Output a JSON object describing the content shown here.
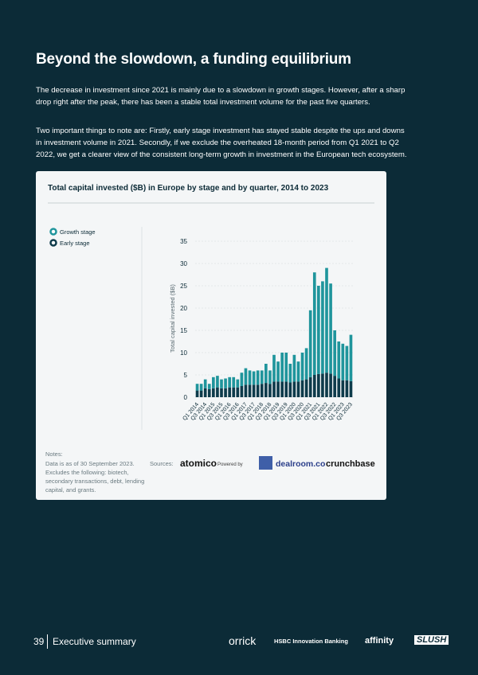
{
  "header": {
    "title": "Beyond the slowdown, a funding equilibrium"
  },
  "paragraphs": [
    "The decrease in investment since 2021 is mainly due to a slowdown in growth stages. However, after a sharp drop right after the peak, there has been a stable total investment volume for the past five quarters.",
    "Two important things to note are: Firstly, early stage investment has stayed stable despite the ups and downs in investment volume in 2021. Secondly, if we exclude the overheated 18-month period from Q1 2021 to Q2 2022, we get a clearer view of the consistent long-term growth in investment in the European tech ecosystem."
  ],
  "chart_data": {
    "type": "stacked-bar",
    "title": "Total capital invested ($B) in Europe by stage and by quarter, 2014 to 2023",
    "y_label": "Total capital invested ($B)",
    "categories": [
      "Q1 2014",
      null,
      "Q3 2014",
      null,
      "Q1 2015",
      null,
      "Q3 2015",
      null,
      "Q1 2016",
      null,
      "Q3 2016",
      null,
      "Q1 2017",
      null,
      "Q3 2017",
      null,
      "Q1 2018",
      null,
      "Q3 2018",
      null,
      "Q1 2019",
      null,
      "Q3 2019",
      null,
      "Q1 2020",
      null,
      "Q3 2020",
      null,
      "Q1 2021",
      null,
      "Q3 2021",
      null,
      "Q1 2022",
      null,
      "Q3 2022",
      null,
      "Q1 2023",
      null,
      "Q3 2023"
    ],
    "series": [
      {
        "name": "Growth stage",
        "color": "#1f959c",
        "values": [
          1.5,
          1.5,
          2,
          1.2,
          2.5,
          2.6,
          2,
          2.2,
          2.3,
          2.3,
          1.8,
          3,
          3.7,
          3.2,
          3,
          3.2,
          3,
          4.3,
          3,
          6,
          4.5,
          6.5,
          6.5,
          4.2,
          6,
          4.5,
          6.2,
          7,
          15,
          23,
          19.8,
          20.7,
          23.5,
          20.2,
          10.2,
          8.3,
          8.2,
          7.7,
          10.4
        ]
      },
      {
        "name": "Early stage",
        "color": "#0e3b4b",
        "values": [
          1.5,
          1.5,
          2,
          1.8,
          2,
          2.2,
          2,
          2,
          2.2,
          2.2,
          2.2,
          2.5,
          2.8,
          2.8,
          2.8,
          2.8,
          3,
          3.2,
          3,
          3.5,
          3.5,
          3.5,
          3.5,
          3.3,
          3.5,
          3.5,
          3.8,
          4,
          4.5,
          5,
          5.2,
          5.3,
          5.5,
          5.3,
          4.8,
          4.2,
          3.8,
          3.8,
          3.6
        ]
      }
    ],
    "ylim": [
      0,
      35
    ],
    "yticks": [
      0,
      5,
      10,
      15,
      20,
      25,
      30,
      35
    ],
    "grid": true
  },
  "notes": {
    "title": "Notes:",
    "lines": [
      "Data is as of 30 September 2023.",
      "Excludes the following: biotech,",
      "secondary transactions, debt, lending",
      "capital, and grants."
    ]
  },
  "sources": {
    "label": "Sources:",
    "logos": [
      "atomico",
      "Powered by",
      "dealroom.co",
      "crunchbase"
    ]
  },
  "footer": {
    "page_number": "39",
    "section": "Executive summary",
    "logos": [
      "orrick",
      "HSBC Innovation Banking",
      "affinity",
      "SLUSH"
    ]
  }
}
